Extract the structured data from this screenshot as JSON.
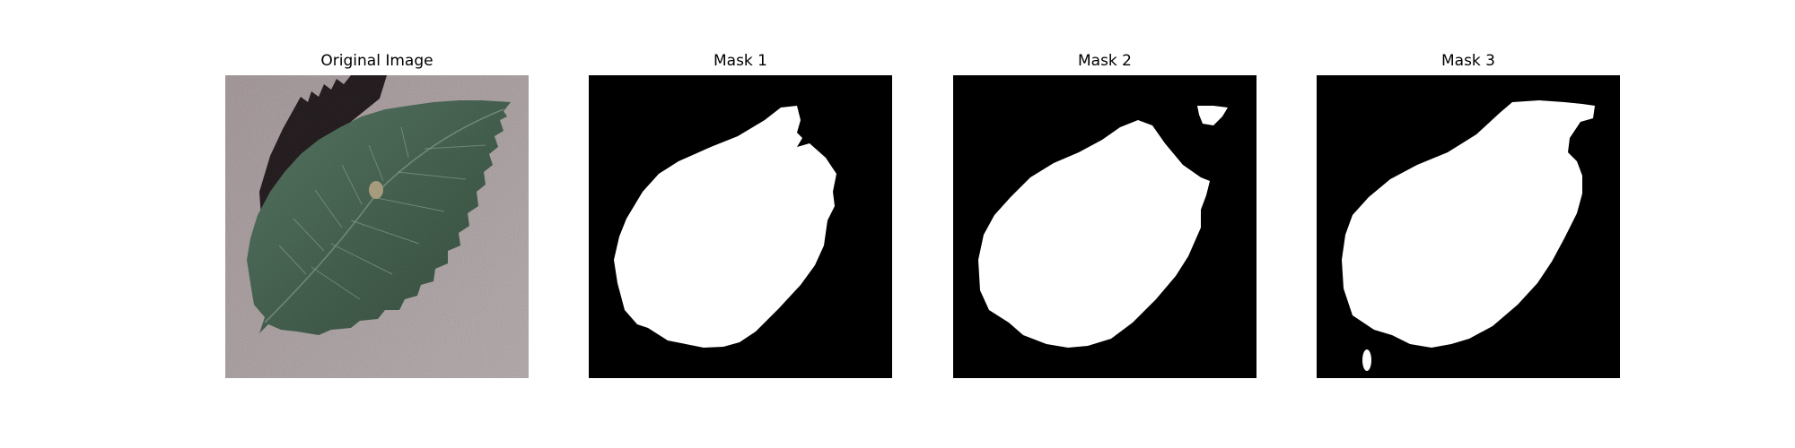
{
  "figure": {
    "panels": [
      {
        "title": "Original Image",
        "kind": "photo",
        "subject": "leaf-on-gray-surface"
      },
      {
        "title": "Mask 1",
        "kind": "mask",
        "foreground": "#ffffff",
        "background": "#000000"
      },
      {
        "title": "Mask 2",
        "kind": "mask",
        "foreground": "#ffffff",
        "background": "#000000"
      },
      {
        "title": "Mask 3",
        "kind": "mask",
        "foreground": "#ffffff",
        "background": "#000000"
      }
    ]
  },
  "colors": {
    "surface": "#a59a9c",
    "leaf": "#3e5a48",
    "leaf_shadow": "#1c1417",
    "mask_foreground": "#ffffff",
    "mask_background": "#000000"
  }
}
